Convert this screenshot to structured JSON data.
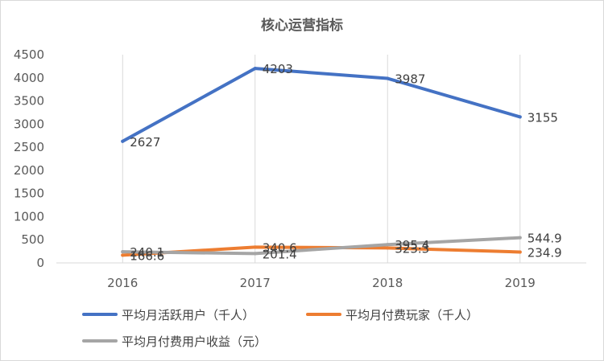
{
  "chart_data": {
    "type": "line",
    "title": "核心运营指标",
    "categories": [
      "2016",
      "2017",
      "2018",
      "2019"
    ],
    "ylim": [
      0,
      4500
    ],
    "yticks": [
      0,
      500,
      1000,
      1500,
      2000,
      2500,
      3000,
      3500,
      4000,
      4500
    ],
    "grid": "vertical",
    "legend_position": "bottom",
    "series": [
      {
        "name": "平均月活跃用户（千人）",
        "color": "#4472C4",
        "values": [
          2627,
          4203,
          3987,
          3155
        ],
        "labels": [
          "2627",
          "4203",
          "3987",
          "3155"
        ]
      },
      {
        "name": "平均月付费玩家（千人）",
        "color": "#ED7D31",
        "values": [
          166.6,
          340.6,
          323.3,
          234.9
        ],
        "labels": [
          "166.6",
          "340.6",
          "323.3",
          "234.9"
        ]
      },
      {
        "name": "平均月付费用户收益（元）",
        "color": "#A5A5A5",
        "values": [
          240.1,
          201.4,
          395.4,
          544.9
        ],
        "labels": [
          "240.1",
          "201.4",
          "395.4",
          "544.9"
        ]
      }
    ]
  }
}
